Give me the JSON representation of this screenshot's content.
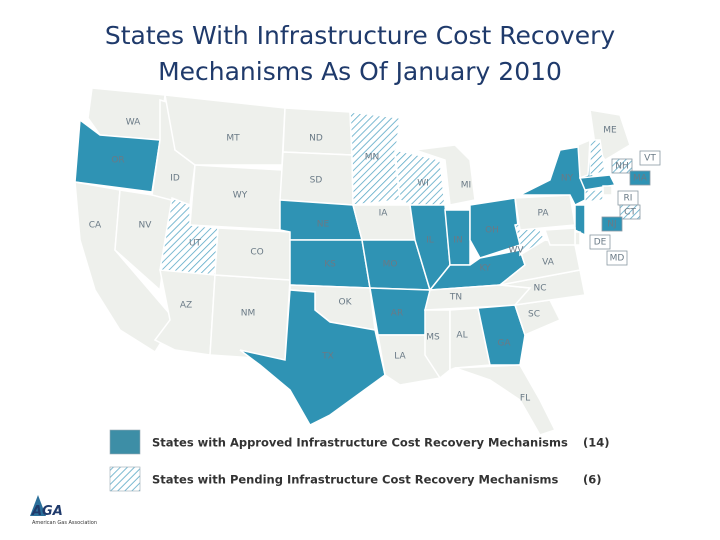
{
  "title_lines": [
    "States With Infrastructure Cost Recovery",
    "Mechanisms As Of January 2010"
  ],
  "states": [
    {
      "label": "WA",
      "status": "none"
    },
    {
      "label": "OR",
      "status": "approved"
    },
    {
      "label": "CA",
      "status": "none"
    },
    {
      "label": "NV",
      "status": "none"
    },
    {
      "label": "ID",
      "status": "none"
    },
    {
      "label": "MT",
      "status": "none"
    },
    {
      "label": "WY",
      "status": "none"
    },
    {
      "label": "UT",
      "status": "pending"
    },
    {
      "label": "AZ",
      "status": "none"
    },
    {
      "label": "NM",
      "status": "none"
    },
    {
      "label": "CO",
      "status": "none"
    },
    {
      "label": "ND",
      "status": "none"
    },
    {
      "label": "SD",
      "status": "none"
    },
    {
      "label": "NE",
      "status": "approved"
    },
    {
      "label": "KS",
      "status": "approved"
    },
    {
      "label": "OK",
      "status": "none"
    },
    {
      "label": "TX",
      "status": "approved"
    },
    {
      "label": "MN",
      "status": "pending"
    },
    {
      "label": "IA",
      "status": "none"
    },
    {
      "label": "MO",
      "status": "approved"
    },
    {
      "label": "AR",
      "status": "approved"
    },
    {
      "label": "LA",
      "status": "none"
    },
    {
      "label": "WI",
      "status": "pending"
    },
    {
      "label": "IL",
      "status": "approved"
    },
    {
      "label": "MI",
      "status": "none"
    },
    {
      "label": "IN",
      "status": "approved"
    },
    {
      "label": "OH",
      "status": "approved"
    },
    {
      "label": "KY",
      "status": "approved"
    },
    {
      "label": "TN",
      "status": "none"
    },
    {
      "label": "MS",
      "status": "none"
    },
    {
      "label": "AL",
      "status": "none"
    },
    {
      "label": "GA",
      "status": "approved"
    },
    {
      "label": "FL",
      "status": "none"
    },
    {
      "label": "SC",
      "status": "none"
    },
    {
      "label": "NC",
      "status": "none"
    },
    {
      "label": "VA",
      "status": "none"
    },
    {
      "label": "WV",
      "status": "pending"
    },
    {
      "label": "PA",
      "status": "none"
    },
    {
      "label": "NY",
      "status": "approved"
    },
    {
      "label": "ME",
      "status": "none"
    },
    {
      "label": "VT",
      "status": "none"
    },
    {
      "label": "NH",
      "status": "pending"
    },
    {
      "label": "MA",
      "status": "approved"
    },
    {
      "label": "RI",
      "status": "none"
    },
    {
      "label": "CT",
      "status": "pending"
    },
    {
      "label": "NJ",
      "status": "approved"
    },
    {
      "label": "DE",
      "status": "none"
    },
    {
      "label": "MD",
      "status": "none"
    }
  ],
  "legend": [
    {
      "status": "approved",
      "label": "States with Approved Infrastructure Cost Recovery Mechanisms",
      "count": "(14)"
    },
    {
      "status": "pending",
      "label": "States with Pending Infrastructure Cost Recovery Mechanisms",
      "count": "(6)"
    }
  ],
  "logo": {
    "mark": "AGA",
    "name": "American Gas Association"
  }
}
